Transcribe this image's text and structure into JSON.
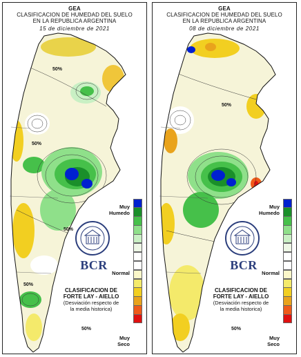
{
  "panels": [
    {
      "title_line1": "GEA",
      "title_line2": "CLASIFICACION DE HUMEDAD DEL SUELO",
      "title_line3": "EN LA REPUBLICA ARGENTINA",
      "date": "15 de diciembre de 2021"
    },
    {
      "title_line1": "GEA",
      "title_line2": "CLASIFICACION DE HUMEDAD DEL SUELO",
      "title_line3": "EN LA REPUBLICA ARGENTINA",
      "date": "08 de diciembre de 2021"
    }
  ],
  "legend": {
    "label_very_wet": "Muy",
    "label_wet": "Humedo",
    "label_normal": "Normal",
    "label_very_dry": "Muy",
    "label_dry": "Seco",
    "colors": [
      "#0020d0",
      "#1a8f2a",
      "#46c04a",
      "#8fe08a",
      "#c9f0c4",
      "#eef7e6",
      "#ffffff",
      "#ffffff",
      "#fbf7c9",
      "#f4ea6b",
      "#f2cf21",
      "#e9a31c",
      "#ef5a1a",
      "#e01010"
    ]
  },
  "branding": {
    "logo": "BCR",
    "seal_name": "bolsa-de-comercio-de-rosario-seal",
    "seal_text": "BOLSA DE COMERCIO DE ROSARIO"
  },
  "classification": {
    "line1": "CLASIFICACION DE",
    "line2": "FORTE LAY - AIELLO",
    "line3": "(Desviación respecto de",
    "line4": "la media historica)"
  },
  "map_labels": {
    "contour_label": "50%"
  }
}
